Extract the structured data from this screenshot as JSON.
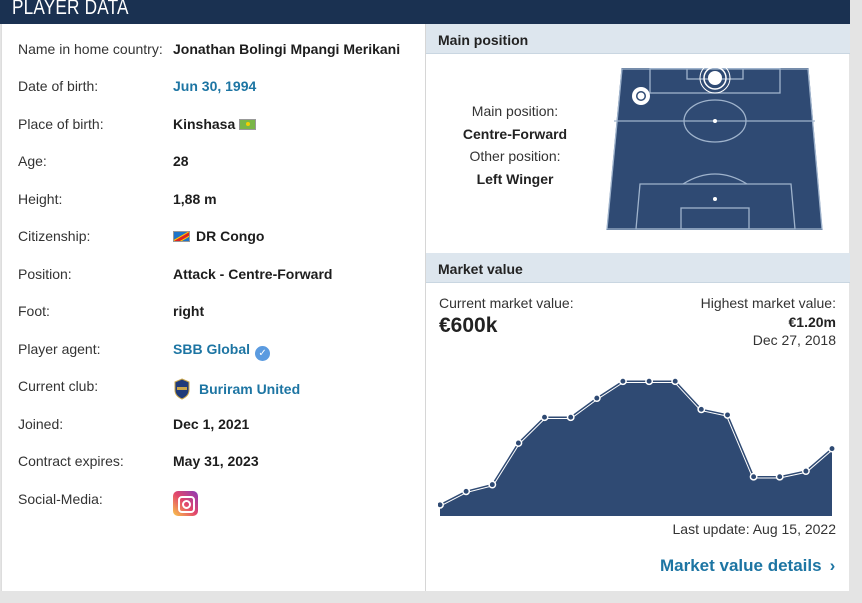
{
  "header": {
    "title": "PLAYER DATA"
  },
  "player": {
    "rows": [
      {
        "label": "Name in home country:",
        "value": "Jonathan Bolingi Mpangi Merikani"
      },
      {
        "label": "Date of birth:",
        "value": "Jun 30, 1994"
      },
      {
        "label": "Place of birth:",
        "value": "Kinshasa"
      },
      {
        "label": "Age:",
        "value": "28"
      },
      {
        "label": "Height:",
        "value": "1,88 m"
      },
      {
        "label": "Citizenship:",
        "value": "DR Congo"
      },
      {
        "label": "Position:",
        "value": "Attack - Centre-Forward"
      },
      {
        "label": "Foot:",
        "value": "right"
      },
      {
        "label": "Player agent:",
        "value": "SBB Global"
      },
      {
        "label": "Current club:",
        "value": "Buriram United"
      },
      {
        "label": "Joined:",
        "value": "Dec 1, 2021"
      },
      {
        "label": "Contract expires:",
        "value": "May 31, 2023"
      },
      {
        "label": "Social-Media:",
        "value": ""
      }
    ]
  },
  "main_position": {
    "heading": "Main position",
    "main_label": "Main position:",
    "main_value": "Centre-Forward",
    "other_label": "Other position:",
    "other_value": "Left Winger",
    "pitch_color": "#2f4a73"
  },
  "market_value": {
    "heading": "Market value",
    "current_label": "Current market value:",
    "current_value": "€600k",
    "highest_label": "Highest market value:",
    "highest_value": "€1.20m",
    "highest_date": "Dec 27, 2018",
    "last_update": "Last update: Aug 15, 2022",
    "details_link": "Market value details",
    "area_color": "#2f4a73"
  },
  "chart_data": {
    "type": "area",
    "title": "",
    "xlabel": "",
    "ylabel": "",
    "values": [
      0.1,
      0.22,
      0.28,
      0.65,
      0.88,
      0.88,
      1.05,
      1.2,
      1.2,
      1.2,
      0.95,
      0.9,
      0.35,
      0.35,
      0.4,
      0.6
    ],
    "ylim": [
      0,
      1.3
    ]
  }
}
